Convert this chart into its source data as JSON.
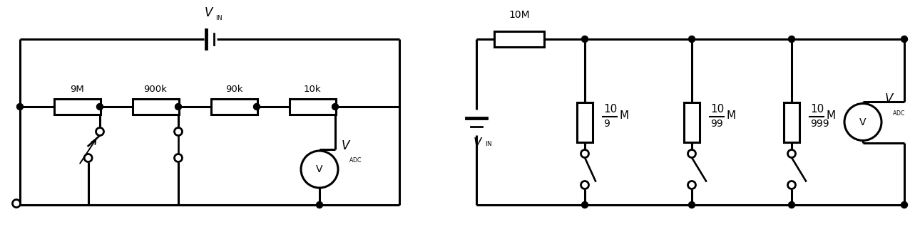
{
  "bg_color": "#ffffff",
  "fig_width": 12.9,
  "fig_height": 3.5,
  "left_circuit": {
    "res_labels": [
      "9M",
      "900k",
      "90k",
      "10k"
    ]
  },
  "right_circuit": {
    "top_res_label": "10M",
    "shunt_numerators": [
      "10",
      "10",
      "10"
    ],
    "shunt_denominators": [
      "9",
      "99",
      "999"
    ],
    "shunt_unit": "M"
  }
}
